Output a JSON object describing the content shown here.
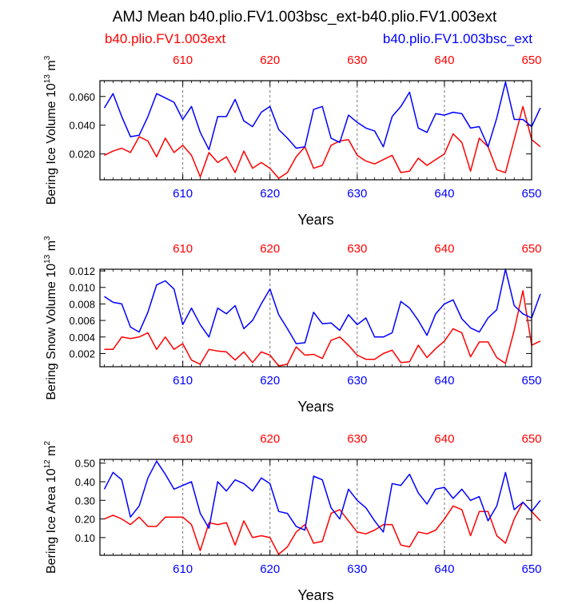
{
  "title": "AMJ Mean b40.plio.FV1.003bsc_ext-b40.plio.FV1.003ext",
  "legend": {
    "left": {
      "label": "b40.plio.FV1.003ext",
      "color": "#ff0000"
    },
    "right": {
      "label": "b40.plio.FV1.003bsc_ext",
      "color": "#0000ff"
    }
  },
  "chart_data": [
    {
      "type": "line",
      "ylabel_prefix": "Bering Ice Volume 10",
      "ylabel_exp": "13",
      "ylabel_suffix": " m",
      "ylabel_unit_exp": "3",
      "xlabel": "Years",
      "xlim": [
        600.5,
        650
      ],
      "ylim": [
        0.002,
        0.071
      ],
      "yticks": [
        0.02,
        0.04,
        0.06
      ],
      "ytick_labels": [
        "0.020",
        "0.040",
        "0.060"
      ],
      "xticks": [
        610,
        620,
        630,
        640,
        650
      ],
      "xtick_labels": [
        "610",
        "620",
        "630",
        "640",
        "650"
      ],
      "x_start": 601,
      "series": [
        {
          "name": "b40.plio.FV1.003ext",
          "color": "#ff0000",
          "values": [
            0.019,
            0.022,
            0.024,
            0.021,
            0.032,
            0.029,
            0.018,
            0.031,
            0.021,
            0.026,
            0.019,
            0.004,
            0.021,
            0.014,
            0.018,
            0.007,
            0.022,
            0.01,
            0.014,
            0.01,
            0.003,
            0.007,
            0.018,
            0.025,
            0.01,
            0.012,
            0.026,
            0.029,
            0.03,
            0.019,
            0.015,
            0.013,
            0.016,
            0.019,
            0.007,
            0.008,
            0.017,
            0.012,
            0.016,
            0.02,
            0.034,
            0.028,
            0.008,
            0.031,
            0.025,
            0.009,
            0.007,
            0.03,
            0.053,
            0.03,
            0.025
          ]
        },
        {
          "name": "b40.plio.FV1.003bsc_ext",
          "color": "#0000ff",
          "values": [
            0.052,
            0.062,
            0.046,
            0.032,
            0.033,
            0.046,
            0.062,
            0.059,
            0.056,
            0.044,
            0.053,
            0.035,
            0.023,
            0.046,
            0.046,
            0.058,
            0.043,
            0.039,
            0.049,
            0.053,
            0.037,
            0.031,
            0.024,
            0.025,
            0.051,
            0.053,
            0.031,
            0.028,
            0.047,
            0.042,
            0.038,
            0.036,
            0.025,
            0.046,
            0.053,
            0.063,
            0.038,
            0.035,
            0.048,
            0.047,
            0.049,
            0.048,
            0.038,
            0.039,
            0.025,
            0.045,
            0.07,
            0.044,
            0.044,
            0.039,
            0.052
          ]
        }
      ]
    },
    {
      "type": "line",
      "ylabel_prefix": "Bering Snow Volume 10",
      "ylabel_exp": "13",
      "ylabel_suffix": " m",
      "ylabel_unit_exp": "3",
      "xlabel": "Years",
      "xlim": [
        600.5,
        650
      ],
      "ylim": [
        0.0004,
        0.0122
      ],
      "yticks": [
        0.002,
        0.004,
        0.006,
        0.008,
        0.01,
        0.012
      ],
      "ytick_labels": [
        "0.002",
        "0.004",
        "0.006",
        "0.008",
        "0.010",
        "0.012"
      ],
      "xticks": [
        610,
        620,
        630,
        640,
        650
      ],
      "xtick_labels": [
        "610",
        "620",
        "630",
        "640",
        "650"
      ],
      "x_start": 601,
      "series": [
        {
          "name": "b40.plio.FV1.003ext",
          "color": "#ff0000",
          "values": [
            0.0025,
            0.0025,
            0.004,
            0.0038,
            0.004,
            0.0045,
            0.0025,
            0.004,
            0.0025,
            0.0032,
            0.0012,
            0.0007,
            0.0025,
            0.0023,
            0.0022,
            0.0012,
            0.0022,
            0.0009,
            0.0022,
            0.0018,
            0.0005,
            0.0007,
            0.0028,
            0.0018,
            0.0019,
            0.0014,
            0.0036,
            0.004,
            0.003,
            0.0018,
            0.0013,
            0.0013,
            0.002,
            0.0024,
            0.0009,
            0.001,
            0.003,
            0.0015,
            0.0026,
            0.0035,
            0.005,
            0.0045,
            0.0016,
            0.0034,
            0.0034,
            0.0015,
            0.0008,
            0.0048,
            0.0096,
            0.003,
            0.0035
          ]
        },
        {
          "name": "b40.plio.FV1.003bsc_ext",
          "color": "#0000ff",
          "values": [
            0.0089,
            0.0082,
            0.008,
            0.0052,
            0.0046,
            0.007,
            0.0103,
            0.0108,
            0.0098,
            0.0055,
            0.0075,
            0.0055,
            0.004,
            0.0075,
            0.0068,
            0.0078,
            0.005,
            0.006,
            0.008,
            0.0098,
            0.0067,
            0.005,
            0.0032,
            0.0033,
            0.007,
            0.0056,
            0.0057,
            0.0048,
            0.0067,
            0.0055,
            0.0063,
            0.004,
            0.004,
            0.0045,
            0.0083,
            0.0075,
            0.006,
            0.0042,
            0.0068,
            0.008,
            0.0085,
            0.0062,
            0.0051,
            0.0046,
            0.0063,
            0.0073,
            0.0122,
            0.0078,
            0.0068,
            0.0063,
            0.0092
          ]
        }
      ]
    },
    {
      "type": "line",
      "ylabel_prefix": "Bering Ice Area 10",
      "ylabel_exp": "12",
      "ylabel_suffix": " m",
      "ylabel_unit_exp": "2",
      "xlabel": "Years",
      "xlim": [
        600.5,
        650
      ],
      "ylim": [
        0.005,
        0.52
      ],
      "yticks": [
        0.1,
        0.2,
        0.3,
        0.4,
        0.5
      ],
      "ytick_labels": [
        "0.10",
        "0.20",
        "0.30",
        "0.40",
        "0.50"
      ],
      "xticks": [
        610,
        620,
        630,
        640,
        650
      ],
      "xtick_labels": [
        "610",
        "620",
        "630",
        "640",
        "650"
      ],
      "x_start": 601,
      "series": [
        {
          "name": "b40.plio.FV1.003ext",
          "color": "#ff0000",
          "values": [
            0.2,
            0.22,
            0.2,
            0.17,
            0.21,
            0.16,
            0.16,
            0.21,
            0.21,
            0.21,
            0.17,
            0.03,
            0.18,
            0.17,
            0.18,
            0.06,
            0.19,
            0.1,
            0.11,
            0.1,
            0.01,
            0.05,
            0.13,
            0.17,
            0.07,
            0.08,
            0.23,
            0.25,
            0.19,
            0.13,
            0.12,
            0.14,
            0.17,
            0.17,
            0.06,
            0.05,
            0.13,
            0.12,
            0.14,
            0.2,
            0.27,
            0.25,
            0.11,
            0.24,
            0.24,
            0.11,
            0.07,
            0.2,
            0.29,
            0.24,
            0.19
          ]
        },
        {
          "name": "b40.plio.FV1.003bsc_ext",
          "color": "#0000ff",
          "values": [
            0.36,
            0.45,
            0.41,
            0.21,
            0.27,
            0.42,
            0.51,
            0.44,
            0.36,
            0.38,
            0.4,
            0.23,
            0.15,
            0.4,
            0.35,
            0.41,
            0.39,
            0.35,
            0.42,
            0.39,
            0.24,
            0.23,
            0.16,
            0.14,
            0.43,
            0.41,
            0.26,
            0.2,
            0.36,
            0.3,
            0.26,
            0.19,
            0.13,
            0.39,
            0.38,
            0.44,
            0.34,
            0.28,
            0.36,
            0.37,
            0.31,
            0.36,
            0.3,
            0.32,
            0.19,
            0.27,
            0.45,
            0.25,
            0.29,
            0.24,
            0.3
          ]
        }
      ]
    }
  ]
}
